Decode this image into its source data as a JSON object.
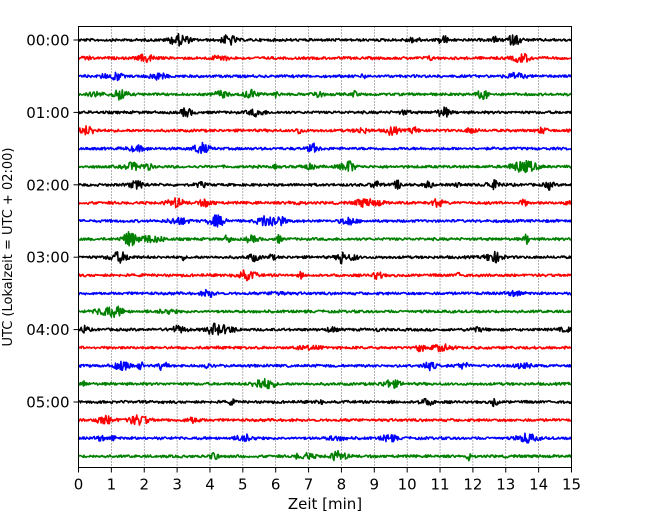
{
  "chart_data": {
    "type": "line",
    "subtype": "helicorder",
    "title": "",
    "xlabel": "Zeit  [min]",
    "ylabel": "UTC (Lokalzeit = UTC + 02:00)",
    "xlim": [
      0,
      15
    ],
    "x_ticks": [
      0,
      1,
      2,
      3,
      4,
      5,
      6,
      7,
      8,
      9,
      10,
      11,
      12,
      13,
      14,
      15
    ],
    "x_tick_labels": [
      "0",
      "1",
      "2",
      "3",
      "4",
      "5",
      "6",
      "7",
      "8",
      "9",
      "10",
      "11",
      "12",
      "13",
      "14",
      "15"
    ],
    "y_tick_labels": [
      "00:00",
      "01:00",
      "02:00",
      "03:00",
      "04:00",
      "05:00"
    ],
    "minutes_per_line": 15,
    "line_count": 24,
    "color_cycle": [
      "#000000",
      "#ff0000",
      "#0000ff",
      "#008000"
    ],
    "grid": "vertical dotted",
    "legend": "none"
  }
}
